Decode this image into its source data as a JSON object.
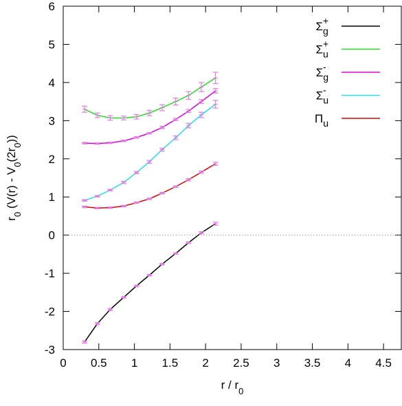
{
  "chart_data": {
    "type": "line",
    "x": [
      0.3,
      0.48,
      0.66,
      0.85,
      1.03,
      1.21,
      1.39,
      1.58,
      1.76,
      1.94,
      2.14
    ],
    "series": [
      {
        "name": "Σ",
        "sub": "g",
        "sup": "+",
        "color": "#000000",
        "values": [
          -2.8,
          -2.32,
          -1.95,
          -1.63,
          -1.33,
          -1.05,
          -0.76,
          -0.48,
          -0.2,
          0.06,
          0.3
        ],
        "errors": [
          0.03,
          0.03,
          0.03,
          0.02,
          0.02,
          0.02,
          0.02,
          0.02,
          0.02,
          0.03,
          0.04
        ]
      },
      {
        "name": "Σ",
        "sub": "u",
        "sup": "+",
        "color": "#22dd22",
        "values": [
          3.3,
          3.14,
          3.07,
          3.07,
          3.1,
          3.2,
          3.34,
          3.5,
          3.66,
          3.88,
          4.12
        ],
        "errors": [
          0.08,
          0.06,
          0.06,
          0.05,
          0.06,
          0.07,
          0.08,
          0.09,
          0.1,
          0.12,
          0.15
        ]
      },
      {
        "name": "Σ",
        "sub": "g",
        "sup": "-",
        "color": "#dd00dd",
        "values": [
          2.41,
          2.4,
          2.42,
          2.47,
          2.56,
          2.67,
          2.82,
          3.03,
          3.25,
          3.5,
          3.78
        ],
        "errors": [
          0.02,
          0.02,
          0.02,
          0.02,
          0.02,
          0.02,
          0.03,
          0.03,
          0.04,
          0.05,
          0.06
        ]
      },
      {
        "name": "Σ",
        "sub": "u",
        "sup": "-",
        "color": "#22e0ee",
        "values": [
          0.91,
          1.02,
          1.18,
          1.38,
          1.64,
          1.92,
          2.24,
          2.55,
          2.87,
          3.15,
          3.43
        ],
        "errors": [
          0.02,
          0.02,
          0.02,
          0.03,
          0.03,
          0.04,
          0.04,
          0.05,
          0.06,
          0.07,
          0.1
        ]
      },
      {
        "name": "Π",
        "sub": "u",
        "sup": "",
        "color": "#dd0000",
        "values": [
          0.74,
          0.71,
          0.72,
          0.76,
          0.85,
          0.95,
          1.1,
          1.27,
          1.45,
          1.65,
          1.87
        ],
        "errors": [
          0.02,
          0.02,
          0.02,
          0.02,
          0.02,
          0.02,
          0.02,
          0.02,
          0.03,
          0.03,
          0.04
        ]
      }
    ],
    "point_color": "#e07ee0",
    "xlabel": [
      "r / r",
      "0"
    ],
    "ylabel": [
      "r",
      "0",
      " (V(r) - V",
      "0",
      "(2r",
      "0",
      "))"
    ],
    "xlim": [
      0,
      4.75
    ],
    "ylim": [
      -3,
      6
    ],
    "xticks": [
      0,
      0.5,
      1,
      1.5,
      2,
      2.5,
      3,
      3.5,
      4,
      4.5
    ],
    "yticks": [
      -3,
      -2,
      -1,
      0,
      1,
      2,
      3,
      4,
      5,
      6
    ],
    "hlines": [
      0
    ],
    "legend": "top-right"
  }
}
